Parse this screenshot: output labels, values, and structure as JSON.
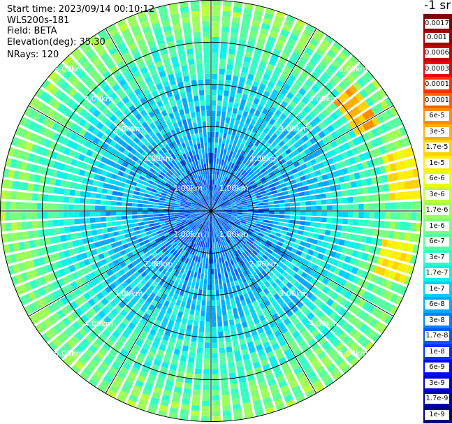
{
  "header": {
    "start_time": "Start time: 2023/09/14 00:10:12",
    "instrument": "WLS200s-181",
    "field": "Field: BETA",
    "elevation": "Elevation(deg): 35.30",
    "nrays": "NRays: 120"
  },
  "colorbar": {
    "title": "-1 sr",
    "labels": [
      "0.0017",
      "0.001",
      "0.0006",
      "0.0003",
      "0.00017",
      "0.0001",
      "6e-5",
      "3e-5",
      "1.7e-5",
      "1e-5",
      "6e-6",
      "3e-6",
      "1.7e-6",
      "1e-6",
      "6e-7",
      "3e-7",
      "1.7e-7",
      "1e-7",
      "6e-8",
      "3e-8",
      "1.7e-8",
      "1e-8",
      "6e-9",
      "3e-9",
      "1.7e-9",
      "1e-9"
    ],
    "colors": [
      "#7f0000",
      "#a00000",
      "#c80000",
      "#f00000",
      "#ff3000",
      "#ff6000",
      "#ff8c00",
      "#ffb000",
      "#ffd200",
      "#ffef00",
      "#e6ff10",
      "#c0ff36",
      "#9cff5a",
      "#78ff7e",
      "#55ffa2",
      "#30ffc6",
      "#0ff0e8",
      "#00cfff",
      "#00a8ff",
      "#0080ff",
      "#0058ff",
      "#0030ff",
      "#0008ff",
      "#0000d8",
      "#0000a8",
      "#00007f"
    ]
  },
  "chart_data": {
    "type": "heatmap",
    "projection": "polar PPI (plan position indicator)",
    "rays": 120,
    "range_unit": "km",
    "range_max_km": 5.0,
    "range_rings": [
      {
        "value": 1.0,
        "label": "1.00km"
      },
      {
        "value": 2.0,
        "label": "2.00km"
      },
      {
        "value": 3.0,
        "label": "3.00km"
      },
      {
        "value": 4.0,
        "label": "4.00km"
      },
      {
        "value": 5.0,
        "label": "5.00km"
      }
    ],
    "azimuth_lines_every_deg": 30,
    "colorscale": "log, 1e-9 to 0.0017 sr-1",
    "radial_profile": [
      {
        "range_km": 0.5,
        "log10_beta": -7.6
      },
      {
        "range_km": 1.0,
        "log10_beta": -7.5
      },
      {
        "range_km": 2.0,
        "log10_beta": -7.1
      },
      {
        "range_km": 3.0,
        "log10_beta": -6.8
      },
      {
        "range_km": 4.0,
        "log10_beta": -6.3
      },
      {
        "range_km": 5.0,
        "log10_beta": -5.9
      }
    ],
    "hotspots": [
      {
        "azimuth_deg": 55,
        "range_km": 4.2,
        "log10_beta": -4.6
      },
      {
        "azimuth_deg": 80,
        "range_km": 4.6,
        "log10_beta": -5.0
      },
      {
        "azimuth_deg": 105,
        "range_km": 4.5,
        "log10_beta": -5.0
      }
    ]
  }
}
